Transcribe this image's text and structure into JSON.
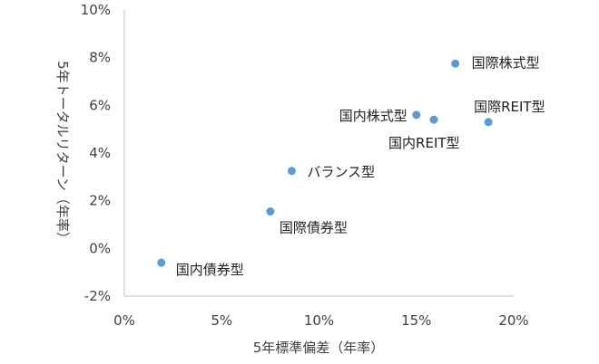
{
  "chart_data": {
    "type": "scatter",
    "title": "",
    "xlabel": "5年標準偏差（年率）",
    "ylabel": "5年トータルリターン（年率）",
    "xlim": [
      0,
      20
    ],
    "ylim": [
      -2,
      10
    ],
    "x_ticks": [
      "0%",
      "5%",
      "10%",
      "15%",
      "20%"
    ],
    "y_ticks": [
      "-2%",
      "0%",
      "2%",
      "4%",
      "6%",
      "8%",
      "10%"
    ],
    "grid": false,
    "marker_color": "#5b9bd5",
    "points": [
      {
        "label": "国内債券型",
        "x": 1.9,
        "y": -0.6
      },
      {
        "label": "国際債券型",
        "x": 7.5,
        "y": 1.55
      },
      {
        "label": "バランス型",
        "x": 8.6,
        "y": 3.25
      },
      {
        "label": "国内株式型",
        "x": 15.0,
        "y": 5.6
      },
      {
        "label": "国内REIT型",
        "x": 15.9,
        "y": 5.4
      },
      {
        "label": "国際株式型",
        "x": 17.0,
        "y": 7.75
      },
      {
        "label": "国際REIT型",
        "x": 18.7,
        "y": 5.3
      }
    ]
  }
}
